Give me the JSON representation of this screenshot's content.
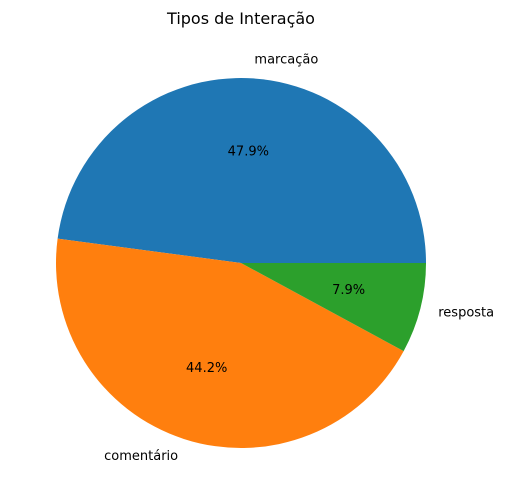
{
  "chart_data": {
    "type": "pie",
    "title": "Tipos de Interação",
    "labels": [
      "marcação",
      "comentário",
      "resposta"
    ],
    "values": [
      47.9,
      44.2,
      7.9
    ],
    "value_labels": [
      "47.9%",
      "44.2%",
      "7.9%"
    ],
    "colors": [
      "#1f77b4",
      "#ff7f0e",
      "#2ca02c"
    ],
    "start_angle_deg": 0,
    "direction": "counterclockwise"
  }
}
